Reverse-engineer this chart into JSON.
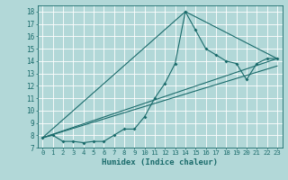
{
  "xlabel": "Humidex (Indice chaleur)",
  "ylabel": "",
  "background_color": "#b2d8d8",
  "grid_color": "#c8e8e8",
  "line_color": "#1a6b6b",
  "xlim": [
    -0.5,
    23.5
  ],
  "ylim": [
    7,
    18.5
  ],
  "yticks": [
    7,
    8,
    9,
    10,
    11,
    12,
    13,
    14,
    15,
    16,
    17,
    18
  ],
  "xticks": [
    0,
    1,
    2,
    3,
    4,
    5,
    6,
    7,
    8,
    9,
    10,
    11,
    12,
    13,
    14,
    15,
    16,
    17,
    18,
    19,
    20,
    21,
    22,
    23
  ],
  "series": [
    {
      "x": [
        0,
        1,
        2,
        3,
        4,
        5,
        6,
        7,
        8,
        9,
        10,
        11,
        12,
        13,
        14,
        15,
        16,
        17,
        18,
        19,
        20,
        21,
        22,
        23
      ],
      "y": [
        7.8,
        8.0,
        7.5,
        7.5,
        7.4,
        7.5,
        7.5,
        8.0,
        8.5,
        8.5,
        9.5,
        11.0,
        12.2,
        13.8,
        18.0,
        16.5,
        15.0,
        14.5,
        14.0,
        13.8,
        12.5,
        13.8,
        14.2,
        14.2
      ]
    },
    {
      "x": [
        0,
        23
      ],
      "y": [
        7.8,
        14.2
      ]
    },
    {
      "x": [
        0,
        14,
        23
      ],
      "y": [
        7.8,
        18.0,
        14.2
      ]
    },
    {
      "x": [
        0,
        23
      ],
      "y": [
        7.8,
        13.6
      ]
    }
  ]
}
